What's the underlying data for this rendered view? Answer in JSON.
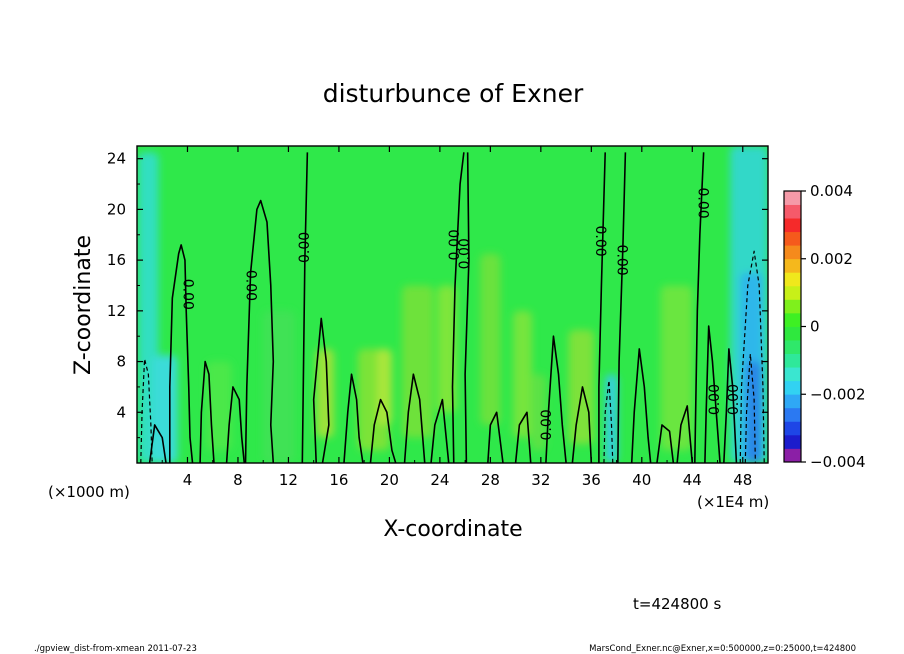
{
  "chart_data": {
    "type": "heatmap",
    "title": "disturbunce of Exner",
    "xlabel": "X-coordinate",
    "ylabel": "Z-coordinate",
    "x_unit_label": "(×1E4 m)",
    "y_unit_label": "(×1000 m)",
    "xlim": [
      0,
      50
    ],
    "ylim": [
      0,
      25
    ],
    "x_ticks": [
      4,
      8,
      12,
      16,
      20,
      24,
      28,
      32,
      36,
      40,
      44,
      48
    ],
    "y_ticks": [
      4,
      8,
      12,
      16,
      20,
      24
    ],
    "colorbar": {
      "range": [
        -0.004,
        0.004
      ],
      "tick_values": [
        0.004,
        0.002,
        0,
        -0.002,
        -0.004
      ],
      "tick_labels": [
        "0.004",
        "0.002",
        "0",
        "−0.002",
        "−0.004"
      ],
      "colors": [
        "#8b1fa6",
        "#1c1ccc",
        "#1e46e6",
        "#2b79f2",
        "#2fa8f5",
        "#32d2f2",
        "#3ae6d0",
        "#2fe89a",
        "#2fe86a",
        "#2fe83e",
        "#3ef023",
        "#7ff01c",
        "#c8f018",
        "#f0e81c",
        "#f5b81c",
        "#f58a1c",
        "#f55a1c",
        "#f52a2a",
        "#f55a6a",
        "#f59aa8"
      ]
    },
    "background_color": "#2fe84a",
    "contour_level_label": "0.00",
    "contour_labels": [
      {
        "x": 4.0,
        "z": 13.3,
        "text": "0.00",
        "rotate": 90
      },
      {
        "x": 9.0,
        "z": 14.0,
        "text": "0.00",
        "rotate": 90
      },
      {
        "x": 13.3,
        "z": 17.0,
        "text": "0.00",
        "rotate": -90
      },
      {
        "x": 25.2,
        "z": 17.2,
        "text": "0.00",
        "rotate": -90
      },
      {
        "x": 26.0,
        "z": 16.5,
        "text": "0.00",
        "rotate": -90
      },
      {
        "x": 36.7,
        "z": 17.5,
        "text": "0.00",
        "rotate": 90
      },
      {
        "x": 38.4,
        "z": 16.0,
        "text": "0.00",
        "rotate": 90
      },
      {
        "x": 44.8,
        "z": 20.5,
        "text": "0.00",
        "rotate": 90
      },
      {
        "x": 32.5,
        "z": 3.0,
        "text": "0.00",
        "rotate": -90
      },
      {
        "x": 45.8,
        "z": 5.0,
        "text": "0.00",
        "rotate": -90
      },
      {
        "x": 47.3,
        "z": 5.0,
        "text": "0.00",
        "rotate": -90
      }
    ],
    "time_label": "t=424800 s",
    "footer_left": "./gpview_dist-from-xmean  2011-07-23",
    "footer_right": "MarsCond_Exner.nc@Exner,x=0:500000,z=0:25000,t=424800"
  }
}
